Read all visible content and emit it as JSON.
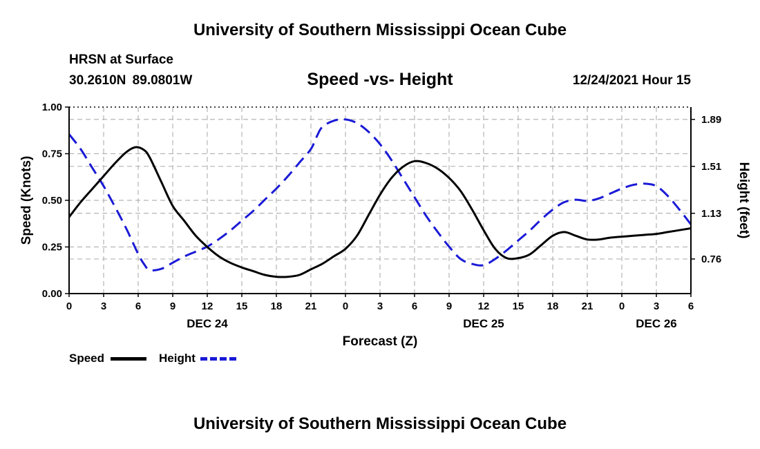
{
  "header": {
    "title": "University of Southern Mississippi Ocean Cube",
    "station": "HRSN at Surface",
    "coords": "30.2610N  89.0801W",
    "chart_title": "Speed -vs- Height",
    "timestamp": "12/24/2021 Hour 15"
  },
  "footer": {
    "title": "University of Southern Mississippi Ocean Cube"
  },
  "legend": {
    "speed_label": "Speed",
    "height_label": "Height"
  },
  "colors": {
    "speed": "#000000",
    "height": "#1a1ad6",
    "grid": "#b4b4b4"
  },
  "chart_data": {
    "type": "line",
    "title": "Speed -vs- Height",
    "xlabel": "Forecast (Z)",
    "ylabel": "Speed (Knots)",
    "y2label": "Height (feet)",
    "xlim": [
      0,
      54
    ],
    "ylim": [
      0,
      1.0
    ],
    "y2lim": [
      0.48,
      1.99
    ],
    "x_ticks": [
      0,
      3,
      6,
      9,
      12,
      15,
      18,
      21,
      24,
      27,
      30,
      33,
      36,
      39,
      42,
      45,
      48,
      51,
      54
    ],
    "x_tick_labels": [
      "0",
      "3",
      "6",
      "9",
      "12",
      "15",
      "18",
      "21",
      "0",
      "3",
      "6",
      "9",
      "12",
      "15",
      "18",
      "21",
      "0",
      "3",
      "6"
    ],
    "day_labels": [
      {
        "x": 12,
        "label": "DEC 24"
      },
      {
        "x": 36,
        "label": "DEC 25"
      },
      {
        "x": 51,
        "label": "DEC 26"
      }
    ],
    "y_ticks": [
      0.0,
      0.25,
      0.5,
      0.75,
      1.0
    ],
    "y_tick_labels": [
      "0.00",
      "0.25",
      "0.50",
      "0.75",
      "1.00"
    ],
    "y2_ticks": [
      0.76,
      1.13,
      1.51,
      1.89
    ],
    "y2_tick_labels": [
      "0.76",
      "1.13",
      "1.51",
      "1.89"
    ],
    "grid": true,
    "series": [
      {
        "name": "Speed",
        "axis": "left",
        "style": "solid",
        "x": [
          0,
          1,
          2,
          3,
          4,
          5,
          5.8,
          6.5,
          7,
          8,
          9,
          10,
          11,
          12,
          13,
          14,
          15,
          16,
          17,
          18,
          19,
          20,
          21,
          22,
          23,
          24,
          25,
          26,
          27,
          28,
          29,
          30,
          31,
          32,
          33,
          34,
          35,
          36,
          37,
          38,
          39,
          40,
          41,
          42,
          43,
          44,
          45,
          46,
          47,
          48,
          49,
          50,
          51,
          52,
          53,
          54
        ],
        "values": [
          0.41,
          0.49,
          0.56,
          0.63,
          0.7,
          0.76,
          0.785,
          0.77,
          0.73,
          0.6,
          0.47,
          0.39,
          0.31,
          0.25,
          0.2,
          0.165,
          0.14,
          0.12,
          0.1,
          0.09,
          0.09,
          0.1,
          0.13,
          0.16,
          0.2,
          0.24,
          0.31,
          0.42,
          0.53,
          0.62,
          0.68,
          0.71,
          0.7,
          0.67,
          0.62,
          0.55,
          0.45,
          0.34,
          0.24,
          0.19,
          0.19,
          0.21,
          0.26,
          0.31,
          0.33,
          0.31,
          0.29,
          0.29,
          0.3,
          0.305,
          0.31,
          0.315,
          0.32,
          0.33,
          0.34,
          0.35
        ]
      },
      {
        "name": "Height",
        "axis": "right",
        "style": "dashed",
        "x": [
          0,
          1,
          2,
          3,
          4,
          5,
          6,
          6.5,
          7,
          8,
          9,
          10,
          11,
          12,
          13,
          14,
          15,
          16,
          17,
          18,
          19,
          20,
          21,
          21.5,
          22,
          23,
          24,
          25,
          26,
          27,
          28,
          29,
          30,
          31,
          32,
          33,
          34,
          35,
          36,
          37,
          38,
          39,
          40,
          41,
          42,
          43,
          44,
          45,
          46,
          47,
          48,
          49,
          50,
          51,
          52,
          53,
          54
        ],
        "values": [
          1.77,
          1.65,
          1.5,
          1.35,
          1.18,
          1.0,
          0.8,
          0.72,
          0.67,
          0.68,
          0.73,
          0.78,
          0.82,
          0.86,
          0.92,
          0.99,
          1.07,
          1.15,
          1.24,
          1.33,
          1.43,
          1.54,
          1.65,
          1.75,
          1.83,
          1.88,
          1.89,
          1.86,
          1.79,
          1.69,
          1.56,
          1.41,
          1.26,
          1.11,
          0.98,
          0.86,
          0.76,
          0.72,
          0.71,
          0.76,
          0.83,
          0.91,
          0.99,
          1.08,
          1.16,
          1.22,
          1.24,
          1.23,
          1.25,
          1.29,
          1.33,
          1.36,
          1.37,
          1.35,
          1.27,
          1.16,
          1.04
        ]
      }
    ]
  }
}
